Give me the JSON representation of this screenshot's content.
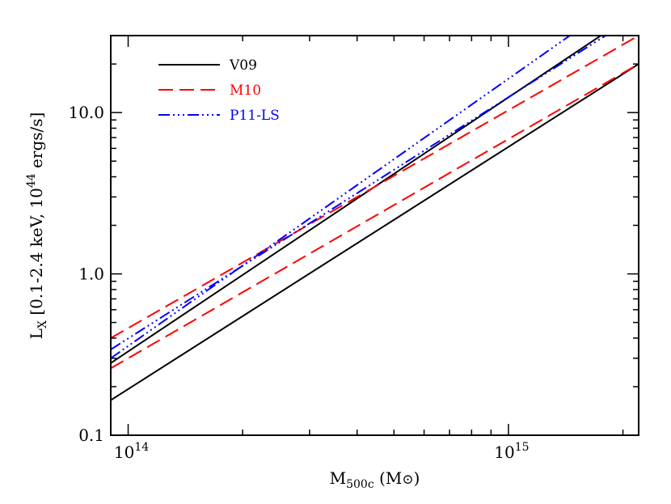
{
  "chart_data": {
    "type": "line",
    "scale": {
      "x": "log",
      "y": "log"
    },
    "xlim": [
      90000000000000.0,
      2200000000000000.0
    ],
    "ylim": [
      0.1,
      30
    ],
    "grid": false,
    "legend_position": "top-left",
    "xlabel": {
      "main": "M",
      "sub": "500c",
      "rest": " (M",
      "sym": "⊙",
      "close": ")"
    },
    "ylabel": {
      "main": "L",
      "sub": "X",
      "rest1": " [0.1-2.4 keV, 10",
      "sup": "44",
      "rest2": " ergs/s]"
    },
    "x_tick_labels": [
      {
        "value": 100000000000000.0,
        "base": "10",
        "exp": "14"
      },
      {
        "value": 1000000000000000.0,
        "base": "10",
        "exp": "15"
      }
    ],
    "y_tick_labels": [
      {
        "value": 0.1,
        "text": "0.1"
      },
      {
        "value": 1.0,
        "text": "1.0"
      },
      {
        "value": 10.0,
        "text": "10.0"
      }
    ],
    "series": [
      {
        "name": "V09",
        "color": "#000000",
        "dash": "solid",
        "lines": [
          {
            "x": [
              90000000000000.0,
              1750000000000000.0
            ],
            "y": [
              0.28,
              30
            ]
          },
          {
            "x": [
              90000000000000.0,
              2200000000000000.0
            ],
            "y": [
              0.165,
              20
            ]
          }
        ]
      },
      {
        "name": "M10",
        "color": "#ff0000",
        "dash": "dashed",
        "lines": [
          {
            "x": [
              90000000000000.0,
              2200000000000000.0
            ],
            "y": [
              0.4,
              30
            ]
          },
          {
            "x": [
              90000000000000.0,
              2200000000000000.0
            ],
            "y": [
              0.26,
              20
            ]
          }
        ]
      },
      {
        "name": "P11-LS",
        "color": "#0000ff",
        "dash": "dash-dot-dot-dot",
        "lines": [
          {
            "x": [
              90000000000000.0,
              1450000000000000.0
            ],
            "y": [
              0.3,
              30
            ]
          },
          {
            "x": [
              90000000000000.0,
              1800000000000000.0
            ],
            "y": [
              0.34,
              30
            ]
          }
        ]
      }
    ]
  }
}
